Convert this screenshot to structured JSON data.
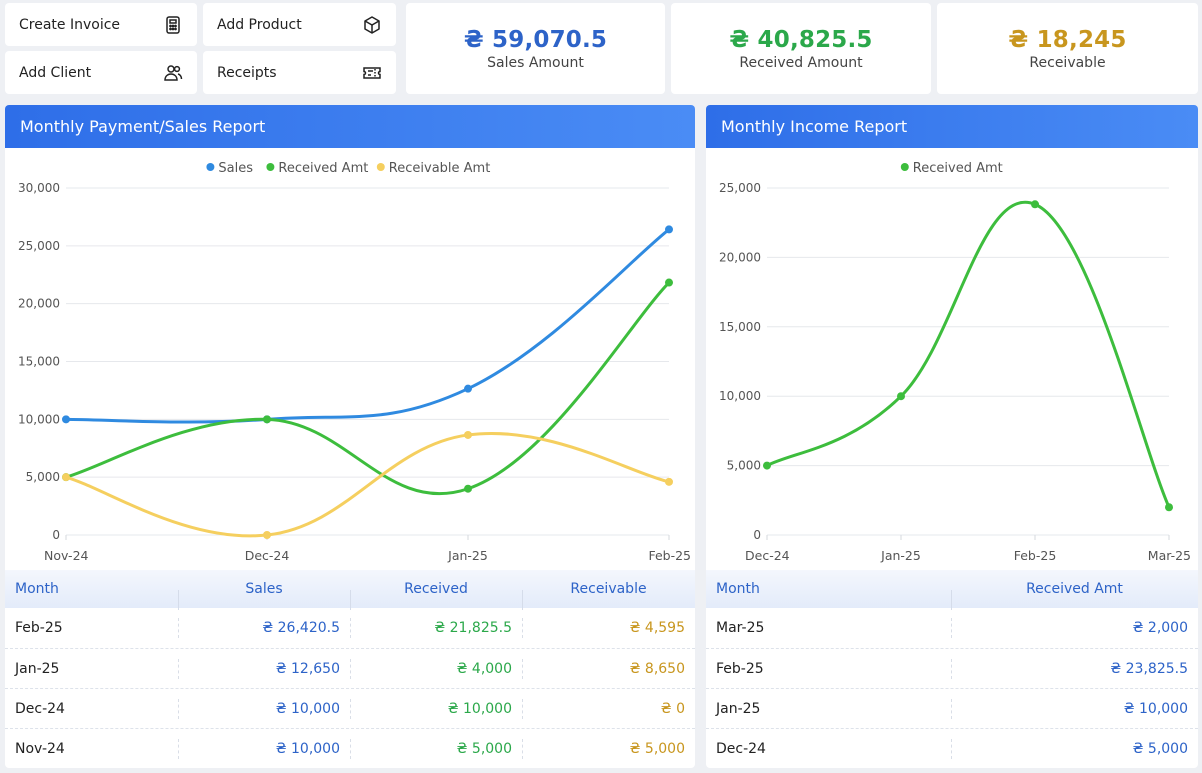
{
  "quick_actions": {
    "create_invoice": "Create Invoice",
    "add_product": "Add Product",
    "add_client": "Add Client",
    "receipts": "Receipts"
  },
  "stats": {
    "sales": {
      "value": "₴ 59,070.5",
      "label": "Sales Amount",
      "color": "#2d63c8"
    },
    "received": {
      "value": "₴ 40,825.5",
      "label": "Received Amount",
      "color": "#2ba84a"
    },
    "receivable": {
      "value": "₴ 18,245",
      "label": "Receivable",
      "color": "#c8961e"
    }
  },
  "left_panel": {
    "title": "Monthly Payment/Sales Report",
    "table": {
      "headers": [
        "Month",
        "Sales",
        "Received",
        "Receivable"
      ],
      "rows": [
        [
          "Feb-25",
          "₴ 26,420.5",
          "₴ 21,825.5",
          "₴ 4,595"
        ],
        [
          "Jan-25",
          "₴ 12,650",
          "₴ 4,000",
          "₴ 8,650"
        ],
        [
          "Dec-24",
          "₴ 10,000",
          "₴ 10,000",
          "₴ 0"
        ],
        [
          "Nov-24",
          "₴ 10,000",
          "₴ 5,000",
          "₴ 5,000"
        ]
      ]
    }
  },
  "right_panel": {
    "title": "Monthly Income Report",
    "table": {
      "headers": [
        "Month",
        "Received Amt"
      ],
      "rows": [
        [
          "Mar-25",
          "₴ 2,000"
        ],
        [
          "Feb-25",
          "₴ 23,825.5"
        ],
        [
          "Jan-25",
          "₴ 10,000"
        ],
        [
          "Dec-24",
          "₴ 5,000"
        ]
      ]
    }
  },
  "chart_data": [
    {
      "type": "line",
      "x": [
        "Nov-24",
        "Dec-24",
        "Jan-25",
        "Feb-25"
      ],
      "series": [
        {
          "name": "Sales",
          "values": [
            10000,
            10000,
            12650,
            26420.5
          ],
          "color": "#2f8ae0"
        },
        {
          "name": "Received Amt",
          "values": [
            5000,
            10000,
            4000,
            21825.5
          ],
          "color": "#3dbd3d"
        },
        {
          "name": "Receivable Amt",
          "values": [
            5000,
            0,
            8650,
            4595
          ],
          "color": "#f5cf5f"
        }
      ],
      "ylim": [
        0,
        30000
      ],
      "yticks": [
        "0",
        "5,000",
        "10,000",
        "15,000",
        "20,000",
        "25,000",
        "30,000"
      ],
      "legend": "top-center",
      "grid": true
    },
    {
      "type": "line",
      "x": [
        "Dec-24",
        "Jan-25",
        "Feb-25",
        "Mar-25"
      ],
      "series": [
        {
          "name": "Received Amt",
          "values": [
            5000,
            10000,
            23825.5,
            2000
          ],
          "color": "#3dbd3d"
        }
      ],
      "ylim": [
        0,
        25000
      ],
      "yticks": [
        "0",
        "5,000",
        "10,000",
        "15,000",
        "20,000",
        "25,000"
      ],
      "legend": "top-center",
      "grid": true
    }
  ]
}
